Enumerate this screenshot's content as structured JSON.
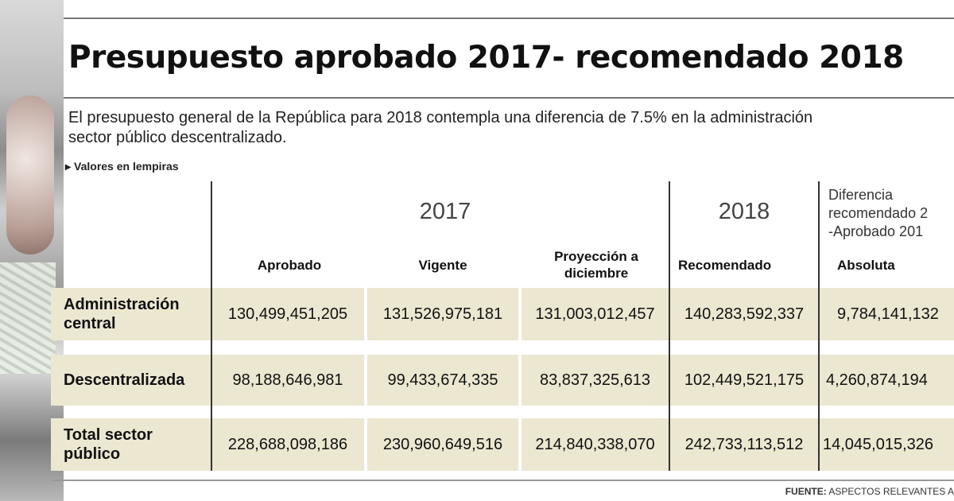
{
  "title": "Presupuesto aprobado 2017- recomendado 2018",
  "intro": "El presupuesto general de la República para 2018 contempla una diferencia de 7.5% en la administración\nsector público descentralizado.",
  "units_note": "Valores en lempiras",
  "chart_data": {
    "type": "table",
    "groups": [
      {
        "label": "2017",
        "columns": [
          "Aprobado",
          "Vigente",
          "Proyección a diciembre"
        ]
      },
      {
        "label": "2018",
        "columns": [
          "Recomendado"
        ]
      },
      {
        "label": "Diferencia recomendado 2\n-Aprobado 201",
        "columns": [
          "Absoluta"
        ]
      }
    ],
    "columns": [
      "Aprobado",
      "Vigente",
      "Proyección a diciembre",
      "Recomendado",
      "Absoluta"
    ],
    "rows": [
      {
        "label": "Administración central",
        "values": [
          "130,499,451,205",
          "131,526,975,181",
          "131,003,012,457",
          "140,283,592,337",
          "9,784,141,132"
        ]
      },
      {
        "label": "Descentralizada",
        "values": [
          "98,188,646,981",
          "99,433,674,335",
          "83,837,325,613",
          "102,449,521,175",
          "4,260,874,194"
        ]
      },
      {
        "label": "Total sector público",
        "values": [
          "228,688,098,186",
          "230,960,649,516",
          "214,840,338,070",
          "242,733,113,512",
          "14,045,015,326"
        ]
      }
    ]
  },
  "source": {
    "label": "FUENTE:",
    "text": "ASPECTOS RELEVANTES A"
  }
}
